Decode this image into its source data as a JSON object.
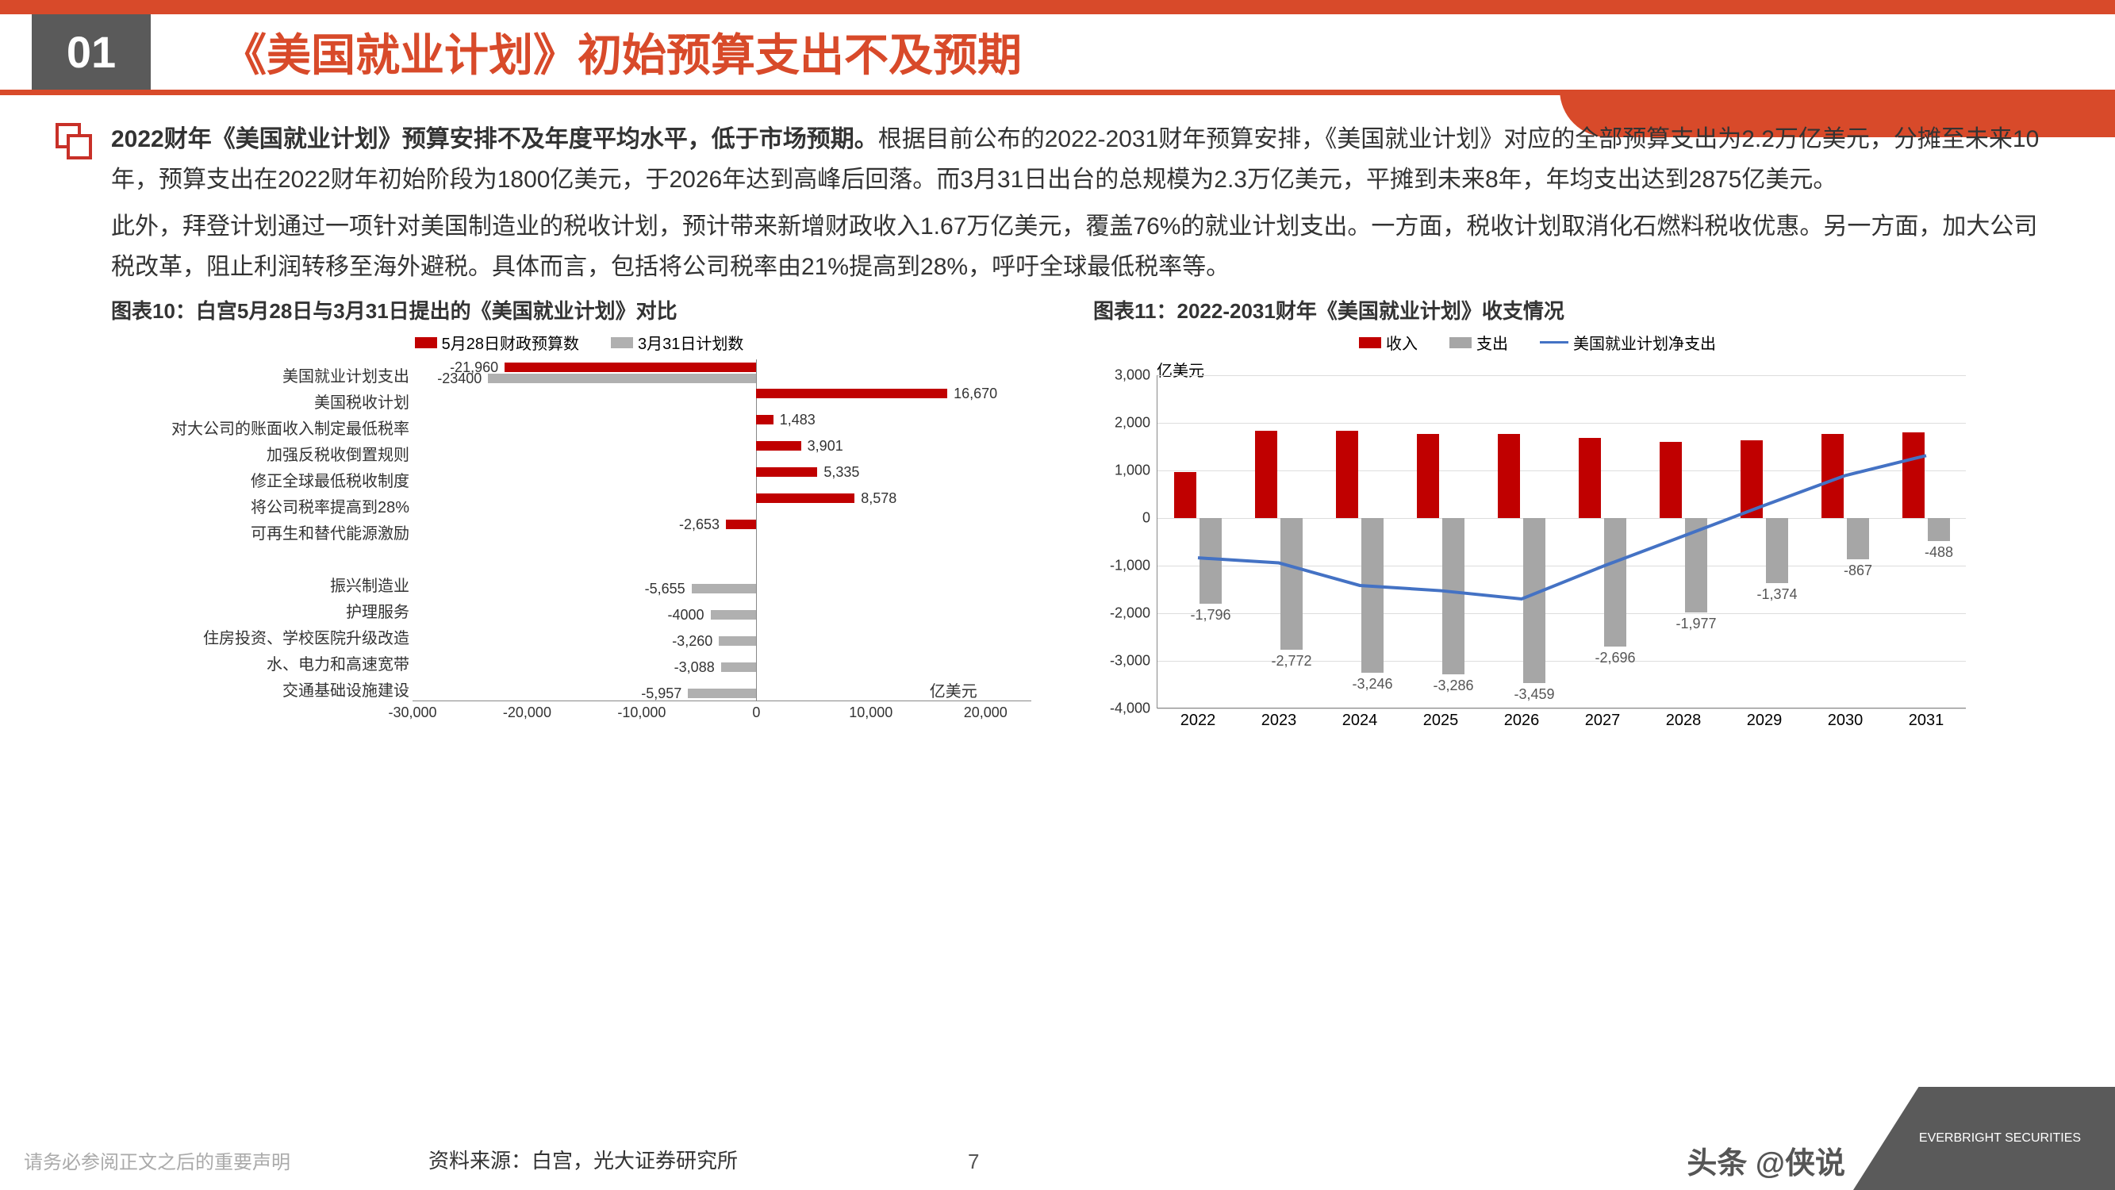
{
  "header": {
    "number": "01",
    "title": "《美国就业计划》初始预算支出不及预期"
  },
  "para1_bold": "2022财年《美国就业计划》预算安排不及年度平均水平，低于市场预期。",
  "para1_rest": "根据目前公布的2022-2031财年预算安排，《美国就业计划》对应的全部预算支出为2.2万亿美元，分摊至未来10年，预算支出在2022财年初始阶段为1800亿美元，于2026年达到高峰后回落。而3月31日出台的总规模为2.3万亿美元，平摊到未来8年，年均支出达到2875亿美元。",
  "para2": "此外，拜登计划通过一项针对美国制造业的税收计划，预计带来新增财政收入1.67万亿美元，覆盖76%的就业计划支出。一方面，税收计划取消化石燃料税收优惠。另一方面，加大公司税改革，阻止利润转移至海外避税。具体而言，包括将公司税率由21%提高到28%，呼吁全球最低税率等。",
  "chart10": {
    "title": "图表10：白宫5月28日与3月31日提出的《美国就业计划》对比",
    "type": "horizontal-bar",
    "legend": [
      {
        "label": "5月28日财政预算数",
        "color": "#c00000"
      },
      {
        "label": "3月31日计划数",
        "color": "#b0b0b0"
      }
    ],
    "unit": "亿美元",
    "x_min": -30000,
    "x_max": 24000,
    "x_ticks": [
      -30000,
      -20000,
      -10000,
      0,
      10000,
      20000
    ],
    "categories": [
      {
        "label": "美国就业计划支出",
        "v1": -21960,
        "v2": -23400,
        "show_v1": "-21,960",
        "show_v2": "-23400"
      },
      {
        "label": "美国税收计划",
        "v1": 16670,
        "v2": null,
        "show_v1": "16,670"
      },
      {
        "label": "对大公司的账面收入制定最低税率",
        "v1": 1483,
        "v2": null,
        "show_v1": "1,483"
      },
      {
        "label": "加强反税收倒置规则",
        "v1": 3901,
        "v2": null,
        "show_v1": "3,901"
      },
      {
        "label": "修正全球最低税收制度",
        "v1": 5335,
        "v2": null,
        "show_v1": "5,335"
      },
      {
        "label": "将公司税率提高到28%",
        "v1": 8578,
        "v2": null,
        "show_v1": "8,578"
      },
      {
        "label": "可再生和替代能源激励",
        "v1": -2653,
        "v2": null,
        "show_v1": "-2,653"
      },
      {
        "label": "",
        "v1": null,
        "v2": null
      },
      {
        "label": "振兴制造业",
        "v1": null,
        "v2": -5655,
        "show_v2": "-5,655"
      },
      {
        "label": "护理服务",
        "v1": null,
        "v2": -4000,
        "show_v2": "-4000"
      },
      {
        "label": "住房投资、学校医院升级改造",
        "v1": null,
        "v2": -3260,
        "show_v2": "-3,260"
      },
      {
        "label": "水、电力和高速宽带",
        "v1": null,
        "v2": -3088,
        "show_v2": "-3,088"
      },
      {
        "label": "交通基础设施建设",
        "v1": null,
        "v2": -5957,
        "show_v2": "-5,957"
      }
    ]
  },
  "chart11": {
    "title": "图表11：2022-2031财年《美国就业计划》收支情况",
    "type": "bar-line-combo",
    "unit": "亿美元",
    "legend": [
      {
        "label": "收入",
        "color": "#c00000",
        "type": "bar"
      },
      {
        "label": "支出",
        "color": "#a6a6a6",
        "type": "bar"
      },
      {
        "label": "美国就业计划净支出",
        "color": "#4472c4",
        "type": "line"
      }
    ],
    "y_min": -4000,
    "y_max": 3000,
    "y_step": 1000,
    "years": [
      2022,
      2023,
      2024,
      2025,
      2026,
      2027,
      2028,
      2029,
      2030,
      2031
    ],
    "income": [
      960,
      1830,
      1830,
      1760,
      1760,
      1680,
      1600,
      1640,
      1760,
      1800
    ],
    "expense": [
      -1796,
      -2772,
      -3246,
      -3286,
      -3459,
      -2696,
      -1977,
      -1374,
      -867,
      -488
    ],
    "net": [
      -836,
      -942,
      -1416,
      -1526,
      -1699,
      -1016,
      -377,
      266,
      893,
      1312
    ],
    "expense_labels": [
      "-1,796",
      "-2,772",
      "-3,246",
      "-3,286",
      "-3,459",
      "-2,696",
      "-1,977",
      "-1,374",
      "-867",
      "-488"
    ],
    "colors": {
      "income": "#c00000",
      "expense": "#a6a6a6",
      "line": "#4472c4",
      "grid": "#dddddd"
    }
  },
  "footer": {
    "disclaimer": "请务必参阅正文之后的重要声明",
    "source": "资料来源：白宫，光大证券研究所",
    "page": "7",
    "watermark": "头条 @侠说",
    "logo": "EVERBRIGHT SECURITIES"
  }
}
